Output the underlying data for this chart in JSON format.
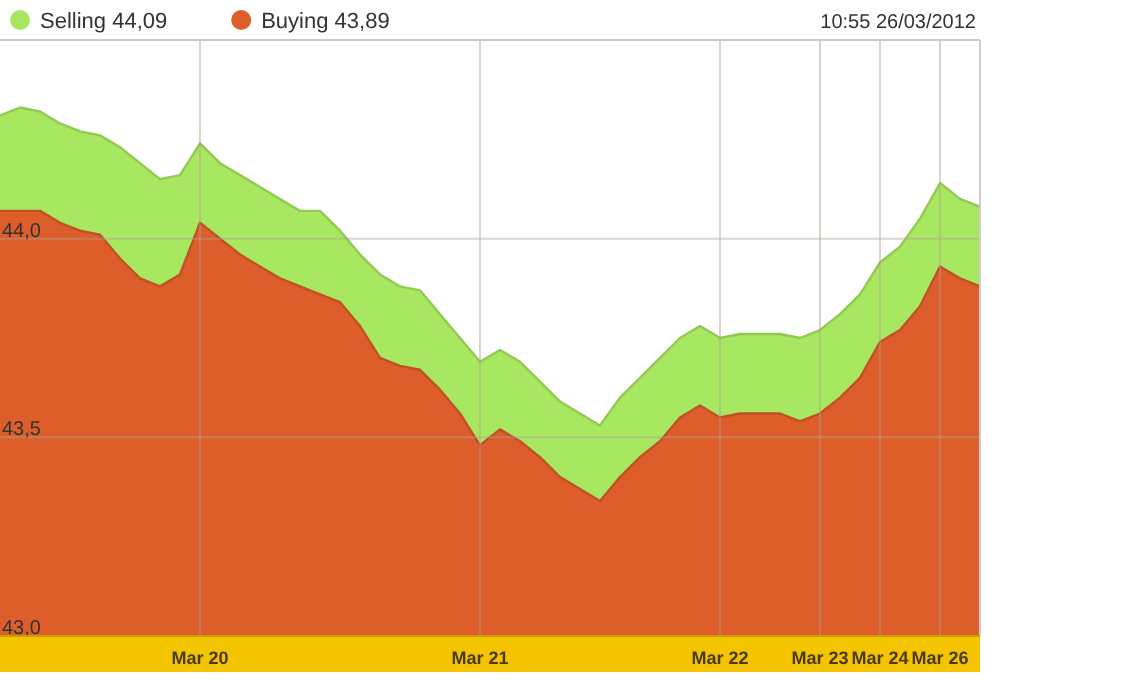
{
  "chart_data": {
    "type": "area",
    "annotations": [
      "10:55 26/03/2012"
    ],
    "categories": [
      null,
      null,
      null,
      null,
      null,
      null,
      null,
      null,
      null,
      null,
      "Mar 20",
      null,
      null,
      null,
      null,
      null,
      null,
      null,
      null,
      null,
      null,
      null,
      null,
      null,
      "Mar 21",
      null,
      null,
      null,
      null,
      null,
      null,
      null,
      null,
      null,
      null,
      null,
      "Mar 22",
      null,
      null,
      null,
      null,
      "Mar 23",
      null,
      null,
      "Mar 24",
      null,
      null,
      "Mar 26",
      null,
      null
    ],
    "ylim": [
      43,
      44.5
    ],
    "yticks": [
      {
        "value": 43,
        "label": "43,0"
      },
      {
        "value": 43.5,
        "label": "43,5"
      },
      {
        "value": 44,
        "label": "44,0"
      }
    ],
    "grid": true,
    "legend": "top left",
    "series": [
      {
        "name": "Selling 44,09",
        "color": "#a8e860",
        "values": [
          44.31,
          44.33,
          44.32,
          44.29,
          44.27,
          44.26,
          44.23,
          44.19,
          44.15,
          44.16,
          44.24,
          44.19,
          44.16,
          44.13,
          44.1,
          44.07,
          44.07,
          44.02,
          43.96,
          43.91,
          43.88,
          43.87,
          43.81,
          43.75,
          43.69,
          43.72,
          43.69,
          43.64,
          43.59,
          43.56,
          43.53,
          43.6,
          43.65,
          43.7,
          43.75,
          43.78,
          43.75,
          43.76,
          43.76,
          43.76,
          43.75,
          43.77,
          43.81,
          43.86,
          43.94,
          43.98,
          44.05,
          44.14,
          44.1,
          44.08
        ]
      },
      {
        "name": "Buying 43,89",
        "color": "#dd5e2a",
        "values": [
          44.07,
          44.07,
          44.07,
          44.04,
          44.02,
          44.01,
          43.95,
          43.9,
          43.88,
          43.91,
          44.04,
          44.0,
          43.96,
          43.93,
          43.9,
          43.88,
          43.86,
          43.84,
          43.78,
          43.7,
          43.68,
          43.67,
          43.62,
          43.56,
          43.48,
          43.52,
          43.49,
          43.45,
          43.4,
          43.37,
          43.34,
          43.4,
          43.45,
          43.49,
          43.55,
          43.58,
          43.55,
          43.56,
          43.56,
          43.56,
          43.54,
          43.56,
          43.6,
          43.65,
          43.74,
          43.77,
          43.83,
          43.93,
          43.9,
          43.88
        ]
      }
    ]
  }
}
